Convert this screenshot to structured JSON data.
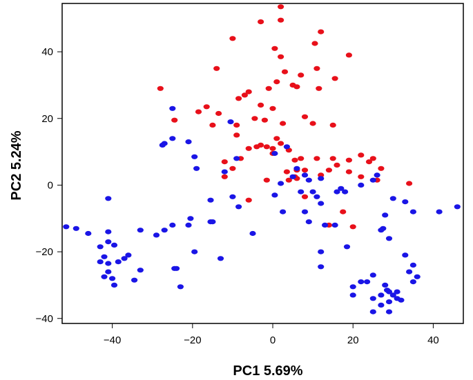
{
  "chart_data": {
    "type": "scatter",
    "title": "",
    "xlabel": "PC1 5.69%",
    "ylabel": "PC2  5.24%",
    "xlim": [
      -52.5,
      47.5
    ],
    "ylim": [
      -41.5,
      54.5
    ],
    "x_ticks": [
      -40,
      -20,
      0,
      20,
      40
    ],
    "y_ticks": [
      -40,
      -20,
      0,
      20,
      40
    ],
    "grid": false,
    "legend": "none",
    "series": [
      {
        "color": "#e8101a",
        "points": [
          [
            2,
            53.5
          ],
          [
            -3,
            49
          ],
          [
            2,
            49.5
          ],
          [
            12,
            46
          ],
          [
            -10,
            44
          ],
          [
            10.5,
            42.5
          ],
          [
            19,
            39
          ],
          [
            0.5,
            41
          ],
          [
            2,
            38.5
          ],
          [
            11,
            35
          ],
          [
            -14,
            35
          ],
          [
            3,
            34
          ],
          [
            7,
            33
          ],
          [
            5,
            30
          ],
          [
            11.5,
            29
          ],
          [
            6,
            29.5
          ],
          [
            1,
            31
          ],
          [
            -1,
            29
          ],
          [
            15.5,
            32
          ],
          [
            -28,
            29
          ],
          [
            -7,
            27
          ],
          [
            -6,
            28
          ],
          [
            -3,
            24
          ],
          [
            -8.5,
            26
          ],
          [
            -16.5,
            23.5
          ],
          [
            -13.5,
            21.5
          ],
          [
            -18.5,
            22
          ],
          [
            0,
            23
          ],
          [
            -24.5,
            19.5
          ],
          [
            -15,
            18
          ],
          [
            -9,
            18
          ],
          [
            8,
            20.5
          ],
          [
            10,
            18.5
          ],
          [
            -4.5,
            20
          ],
          [
            -2,
            19.5
          ],
          [
            2.5,
            18.5
          ],
          [
            15,
            18
          ],
          [
            -9,
            15
          ],
          [
            1,
            14
          ],
          [
            -3,
            12
          ],
          [
            -4,
            11.5
          ],
          [
            -1.5,
            11.5
          ],
          [
            0,
            11
          ],
          [
            2,
            12.5
          ],
          [
            -6,
            11
          ],
          [
            0,
            9.5
          ],
          [
            4,
            10.5
          ],
          [
            -8,
            8
          ],
          [
            -12,
            7
          ],
          [
            5.5,
            7.5
          ],
          [
            7,
            8
          ],
          [
            11,
            8
          ],
          [
            15,
            8
          ],
          [
            19,
            7.5
          ],
          [
            22,
            9
          ],
          [
            25,
            8
          ],
          [
            6,
            4.5
          ],
          [
            3.5,
            4
          ],
          [
            5.5,
            2.5
          ],
          [
            8,
            4.5
          ],
          [
            14,
            4.5
          ],
          [
            16,
            6
          ],
          [
            24,
            7
          ],
          [
            19,
            4
          ],
          [
            27,
            5
          ],
          [
            22,
            2.5
          ],
          [
            26,
            1.5
          ],
          [
            12,
            3
          ],
          [
            4,
            1.5
          ],
          [
            6,
            2
          ],
          [
            -12,
            2.5
          ],
          [
            -6,
            -4.5
          ],
          [
            -1.5,
            1.5
          ],
          [
            -10,
            5
          ],
          [
            8,
            -3.5
          ],
          [
            17.5,
            -8
          ],
          [
            20,
            -12.5
          ],
          [
            14,
            -12
          ],
          [
            34,
            0.5
          ]
        ]
      },
      {
        "color": "#1a15e6",
        "points": [
          [
            -25,
            23
          ],
          [
            -10.5,
            19
          ],
          [
            -27,
            12.5
          ],
          [
            -27.5,
            12
          ],
          [
            -25,
            14
          ],
          [
            -21,
            13
          ],
          [
            -19.5,
            8.5
          ],
          [
            -19,
            5
          ],
          [
            -9,
            8
          ],
          [
            -12,
            4
          ],
          [
            3.5,
            11.5
          ],
          [
            0.5,
            9.5
          ],
          [
            6,
            5
          ],
          [
            8,
            3
          ],
          [
            5,
            2.5
          ],
          [
            9,
            1.5
          ],
          [
            7,
            -2
          ],
          [
            2,
            0.5
          ],
          [
            0.5,
            -3
          ],
          [
            10,
            -2
          ],
          [
            12,
            2
          ],
          [
            11,
            -3.5
          ],
          [
            12,
            -5.5
          ],
          [
            16,
            -2
          ],
          [
            17,
            -1
          ],
          [
            18,
            -2
          ],
          [
            22,
            0
          ],
          [
            25,
            1.5
          ],
          [
            26,
            3
          ],
          [
            -41,
            -4
          ],
          [
            -15.5,
            -4.5
          ],
          [
            -10,
            -3.5
          ],
          [
            -8.5,
            -6.5
          ],
          [
            -20.5,
            -10
          ],
          [
            -21,
            -12
          ],
          [
            -15.5,
            -11
          ],
          [
            -15,
            -11
          ],
          [
            -25,
            -12
          ],
          [
            -27,
            -13.5
          ],
          [
            -29,
            -15
          ],
          [
            -33,
            -13.5
          ],
          [
            -51.5,
            -12.5
          ],
          [
            -49,
            -13
          ],
          [
            -46,
            -14.5
          ],
          [
            -41,
            -14
          ],
          [
            -43,
            -18.5
          ],
          [
            -41,
            -17
          ],
          [
            -39.5,
            -18
          ],
          [
            -42,
            -21.5
          ],
          [
            -43,
            -23
          ],
          [
            -41,
            -23.5
          ],
          [
            -38.5,
            -23
          ],
          [
            -37,
            -22
          ],
          [
            -36,
            -21
          ],
          [
            -41,
            -26
          ],
          [
            -42,
            -27.5
          ],
          [
            -40,
            -28
          ],
          [
            -39.5,
            -30
          ],
          [
            -34.5,
            -28.5
          ],
          [
            -33,
            -25.5
          ],
          [
            -24.5,
            -25
          ],
          [
            -24,
            -25
          ],
          [
            -23,
            -30.5
          ],
          [
            -19.5,
            -20
          ],
          [
            -13,
            -22
          ],
          [
            -5,
            -14.5
          ],
          [
            2.5,
            -8
          ],
          [
            8,
            -8
          ],
          [
            9,
            -11
          ],
          [
            13,
            -12
          ],
          [
            15.5,
            -12
          ],
          [
            12,
            -20
          ],
          [
            12,
            -24.5
          ],
          [
            18.5,
            -18.5
          ],
          [
            28,
            -9
          ],
          [
            27,
            -13.5
          ],
          [
            27.5,
            -13
          ],
          [
            29,
            -16
          ],
          [
            30,
            -4
          ],
          [
            33,
            -5
          ],
          [
            35,
            -8
          ],
          [
            41.5,
            -8
          ],
          [
            46,
            -6.5
          ],
          [
            33,
            -21
          ],
          [
            35,
            -24
          ],
          [
            34,
            -26
          ],
          [
            36,
            -27.5
          ],
          [
            35,
            -29
          ],
          [
            20,
            -30.5
          ],
          [
            22,
            -29
          ],
          [
            23.5,
            -29
          ],
          [
            25,
            -27
          ],
          [
            20,
            -33
          ],
          [
            25,
            -34
          ],
          [
            27,
            -33
          ],
          [
            28,
            -30
          ],
          [
            28.5,
            -31.5
          ],
          [
            29,
            -32
          ],
          [
            31,
            -32
          ],
          [
            29,
            -35
          ],
          [
            30,
            -33
          ],
          [
            31,
            -34
          ],
          [
            32,
            -34.5
          ],
          [
            27,
            -36
          ],
          [
            25,
            -38
          ],
          [
            29,
            -38
          ]
        ]
      }
    ]
  }
}
